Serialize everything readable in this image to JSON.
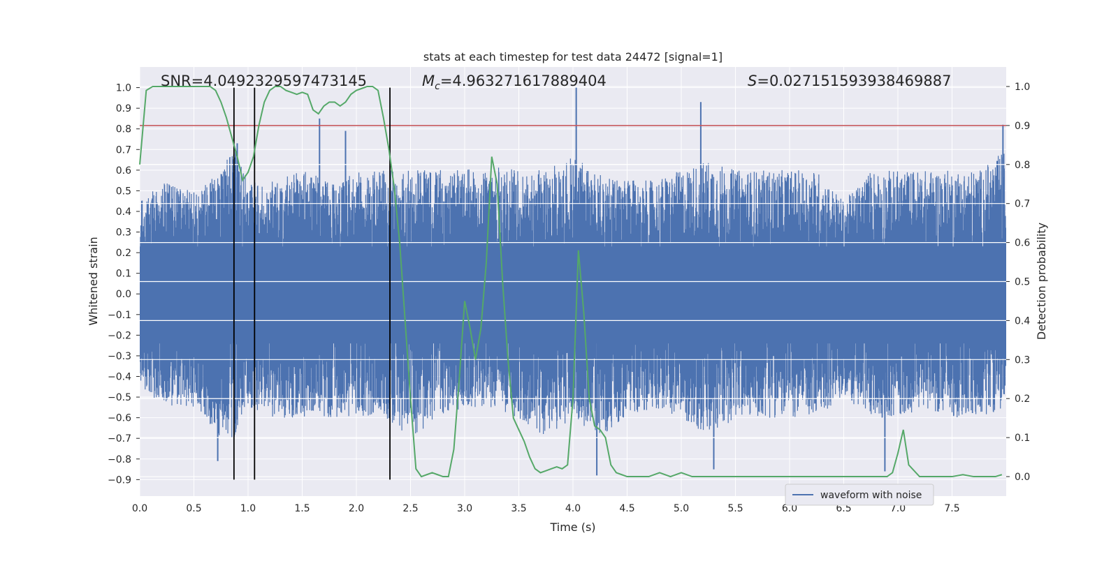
{
  "chart_data": {
    "type": "line",
    "title": "stats at each timestep for test data 24472 [signal=1]",
    "xlabel": "Time (s)",
    "ylabel": "Whitened strain",
    "y2label": "Detection probability",
    "xlim": [
      0.0,
      8.0
    ],
    "ylim": [
      -0.98,
      1.1
    ],
    "y2lim": [
      -0.05,
      1.05
    ],
    "xticks": [
      0.0,
      0.5,
      1.0,
      1.5,
      2.0,
      2.5,
      3.0,
      3.5,
      4.0,
      4.5,
      5.0,
      5.5,
      6.0,
      6.5,
      7.0,
      7.5
    ],
    "xtick_labels": [
      "0.0",
      "0.5",
      "1.0",
      "1.5",
      "2.0",
      "2.5",
      "3.0",
      "3.5",
      "4.0",
      "4.5",
      "5.0",
      "5.5",
      "6.0",
      "6.5",
      "7.0",
      "7.5"
    ],
    "yticks": [
      -0.9,
      -0.8,
      -0.7,
      -0.6,
      -0.5,
      -0.4,
      -0.3,
      -0.2,
      -0.1,
      0.0,
      0.1,
      0.2,
      0.3,
      0.4,
      0.5,
      0.6,
      0.7,
      0.8,
      0.9,
      1.0
    ],
    "ytick_labels": [
      "−0.9",
      "−0.8",
      "−0.7",
      "−0.6",
      "−0.5",
      "−0.4",
      "−0.3",
      "−0.2",
      "−0.1",
      "0.0",
      "0.1",
      "0.2",
      "0.3",
      "0.4",
      "0.5",
      "0.6",
      "0.7",
      "0.8",
      "0.9",
      "1.0"
    ],
    "y2ticks": [
      0.0,
      0.1,
      0.2,
      0.3,
      0.4,
      0.5,
      0.6,
      0.7,
      0.8,
      0.9,
      1.0
    ],
    "y2tick_labels": [
      "0.0",
      "0.1",
      "0.2",
      "0.3",
      "0.4",
      "0.5",
      "0.6",
      "0.7",
      "0.8",
      "0.9",
      "1.0"
    ],
    "grid": true,
    "legend_placement": "lower-right",
    "annotations": {
      "snr": "SNR=4.0492329597473145",
      "mc_symbol": "M",
      "mc_sub": "c",
      "mc_value": "=4.963271617889404",
      "s_symbol": "S",
      "s_value": "=0.027151593938469887"
    },
    "threshold_line": {
      "y2": 0.9,
      "color": "#c44e52"
    },
    "event_lines_x": [
      0.87,
      1.06,
      2.31
    ],
    "series": [
      {
        "name": "waveform with noise",
        "color": "#4c72b0",
        "envelope_x": [
          0.0,
          0.25,
          0.5,
          0.75,
          0.87,
          1.0,
          1.25,
          1.5,
          1.75,
          2.0,
          2.25,
          2.5,
          2.75,
          3.0,
          3.25,
          3.5,
          3.75,
          4.0,
          4.25,
          4.5,
          4.75,
          5.0,
          5.25,
          5.5,
          5.75,
          6.0,
          6.25,
          6.5,
          6.75,
          7.0,
          7.25,
          7.5,
          7.75,
          8.0
        ],
        "envelope_upper": [
          0.45,
          0.55,
          0.5,
          0.6,
          0.73,
          0.55,
          0.55,
          0.6,
          0.55,
          0.6,
          0.6,
          0.6,
          0.6,
          0.6,
          0.62,
          0.6,
          0.6,
          0.68,
          0.58,
          0.55,
          0.55,
          0.6,
          0.65,
          0.6,
          0.6,
          0.6,
          0.6,
          0.45,
          0.6,
          0.6,
          0.6,
          0.6,
          0.6,
          0.7
        ],
        "envelope_lower": [
          -0.45,
          -0.55,
          -0.55,
          -0.7,
          -0.7,
          -0.55,
          -0.6,
          -0.6,
          -0.6,
          -0.6,
          -0.6,
          -0.7,
          -0.6,
          -0.55,
          -0.55,
          -0.6,
          -0.7,
          -0.6,
          -0.7,
          -0.6,
          -0.55,
          -0.6,
          -0.7,
          -0.6,
          -0.6,
          -0.6,
          -0.6,
          -0.5,
          -0.6,
          -0.6,
          -0.55,
          -0.6,
          -0.6,
          -0.55
        ],
        "spikes": [
          {
            "x": 0.72,
            "y": -0.81
          },
          {
            "x": 0.9,
            "y": 0.73
          },
          {
            "x": 1.66,
            "y": 0.85
          },
          {
            "x": 1.9,
            "y": 0.79
          },
          {
            "x": 4.03,
            "y": 1.0
          },
          {
            "x": 4.22,
            "y": -0.88
          },
          {
            "x": 5.18,
            "y": 0.93
          },
          {
            "x": 5.3,
            "y": -0.85
          },
          {
            "x": 6.88,
            "y": -0.86
          },
          {
            "x": 7.97,
            "y": 0.82
          }
        ]
      },
      {
        "name": "",
        "color": "#55a868",
        "axis": "right",
        "x": [
          0.0,
          0.06,
          0.12,
          0.2,
          0.3,
          0.4,
          0.5,
          0.6,
          0.65,
          0.7,
          0.75,
          0.8,
          0.85,
          0.9,
          0.95,
          1.0,
          1.05,
          1.1,
          1.15,
          1.2,
          1.25,
          1.3,
          1.35,
          1.4,
          1.45,
          1.5,
          1.55,
          1.6,
          1.65,
          1.7,
          1.75,
          1.8,
          1.85,
          1.9,
          1.95,
          2.0,
          2.05,
          2.1,
          2.15,
          2.2,
          2.25,
          2.3,
          2.35,
          2.4,
          2.45,
          2.5,
          2.55,
          2.6,
          2.65,
          2.7,
          2.75,
          2.8,
          2.85,
          2.9,
          2.95,
          3.0,
          3.05,
          3.1,
          3.15,
          3.2,
          3.25,
          3.3,
          3.35,
          3.4,
          3.45,
          3.5,
          3.55,
          3.6,
          3.65,
          3.7,
          3.75,
          3.8,
          3.85,
          3.9,
          3.95,
          4.0,
          4.05,
          4.1,
          4.15,
          4.2,
          4.25,
          4.3,
          4.35,
          4.4,
          4.45,
          4.5,
          4.6,
          4.7,
          4.8,
          4.9,
          5.0,
          5.1,
          5.2,
          5.3,
          5.4,
          5.5,
          5.6,
          5.7,
          5.8,
          5.9,
          6.0,
          6.1,
          6.2,
          6.3,
          6.4,
          6.5,
          6.6,
          6.7,
          6.8,
          6.85,
          6.9,
          6.95,
          7.0,
          7.05,
          7.1,
          7.2,
          7.3,
          7.4,
          7.5,
          7.6,
          7.7,
          7.8,
          7.9,
          7.96
        ],
        "y": [
          0.8,
          0.99,
          1.0,
          1.0,
          1.0,
          1.0,
          1.0,
          1.0,
          1.0,
          0.99,
          0.96,
          0.92,
          0.87,
          0.82,
          0.76,
          0.78,
          0.82,
          0.9,
          0.96,
          0.99,
          1.0,
          1.0,
          0.99,
          0.985,
          0.98,
          0.985,
          0.98,
          0.94,
          0.93,
          0.95,
          0.96,
          0.96,
          0.95,
          0.96,
          0.98,
          0.99,
          0.995,
          1.0,
          1.0,
          0.99,
          0.92,
          0.84,
          0.74,
          0.6,
          0.4,
          0.2,
          0.02,
          0.0,
          0.005,
          0.01,
          0.005,
          0.0,
          0.0,
          0.07,
          0.25,
          0.45,
          0.38,
          0.3,
          0.38,
          0.55,
          0.82,
          0.75,
          0.5,
          0.3,
          0.15,
          0.12,
          0.09,
          0.05,
          0.02,
          0.01,
          0.015,
          0.02,
          0.025,
          0.02,
          0.03,
          0.2,
          0.58,
          0.42,
          0.2,
          0.13,
          0.12,
          0.1,
          0.03,
          0.01,
          0.005,
          0.0,
          0.0,
          0.0,
          0.01,
          0.0,
          0.01,
          0.0,
          0.0,
          0.0,
          0.0,
          0.0,
          0.0,
          0.0,
          0.0,
          0.0,
          0.0,
          0.0,
          0.0,
          0.0,
          0.0,
          0.0,
          0.0,
          0.0,
          0.0,
          0.0,
          0.0,
          0.01,
          0.06,
          0.12,
          0.03,
          0.0,
          0.0,
          0.0,
          0.0,
          0.005,
          0.0,
          0.0,
          0.0,
          0.005
        ]
      }
    ]
  }
}
